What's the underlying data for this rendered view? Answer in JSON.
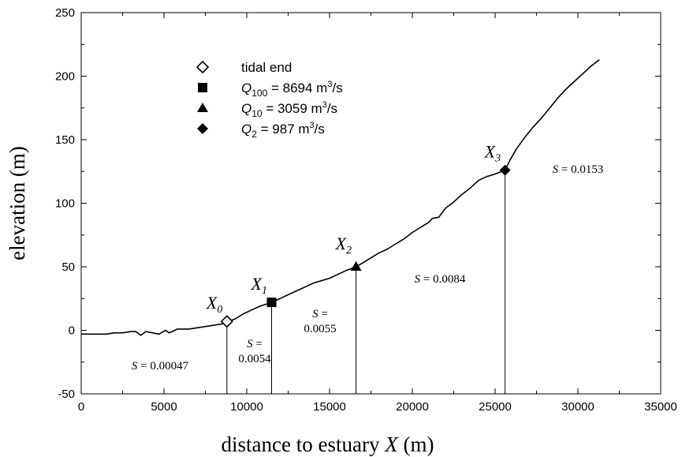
{
  "chart_data": {
    "type": "line",
    "xlabel": "distance to estuary",
    "xlabel_var": "X",
    "xlabel_unit": "(m)",
    "ylabel": "elevation (m)",
    "xlim": [
      0,
      35000
    ],
    "ylim": [
      -50,
      250
    ],
    "x_ticks": [
      0,
      5000,
      10000,
      15000,
      20000,
      25000,
      30000,
      35000
    ],
    "y_ticks": [
      -50,
      0,
      50,
      100,
      150,
      200,
      250
    ],
    "grid": false,
    "legend_position": "top-left",
    "series": [
      {
        "x": [
          0,
          500,
          1000,
          1500,
          2000,
          2500,
          3000,
          3300,
          3600,
          3900,
          4300,
          4700,
          5100,
          5300,
          5500,
          5800,
          6100,
          6500,
          7000,
          7500,
          8000,
          8500,
          8900,
          9300,
          9800,
          10300,
          10800,
          11500,
          12000,
          12500,
          13000,
          13500,
          14000,
          14500,
          15000,
          15500,
          16000,
          16600,
          17000,
          17500,
          18000,
          18500,
          19000,
          19500,
          20000,
          20500,
          21000,
          21200,
          21600,
          22000,
          22500,
          23000,
          23500,
          24000,
          24500,
          25000,
          25600,
          25900,
          26300,
          26800,
          27300,
          27800,
          28300,
          28800,
          29300,
          29800,
          30300,
          30800,
          31300
        ],
        "y": [
          -3,
          -3,
          -3,
          -3,
          -2,
          -2,
          -1,
          -1,
          -4,
          -1,
          -2,
          -3,
          0,
          -2,
          -1,
          1,
          1,
          1,
          2,
          3,
          4,
          5,
          7,
          9,
          13,
          16,
          19,
          22,
          25,
          28,
          31,
          34,
          37,
          39,
          41,
          44,
          47,
          50,
          53,
          57,
          61,
          64,
          68,
          72,
          77,
          81,
          85,
          88,
          89,
          96,
          101,
          107,
          112,
          118,
          121,
          123,
          126,
          134,
          143,
          152,
          160,
          167,
          175,
          183,
          190,
          196,
          202,
          208,
          213
        ]
      }
    ],
    "legend": [
      {
        "symbol": "diamond-open",
        "label": "tidal end"
      },
      {
        "symbol": "square",
        "q": "Q",
        "sub": "100",
        "label": " = 8694 m",
        "sup": "3",
        "tail": "/s"
      },
      {
        "symbol": "triangle",
        "q": "Q",
        "sub": "10",
        "label": " = 3059 m",
        "sup": "3",
        "tail": "/s"
      },
      {
        "symbol": "diamond",
        "q": "Q",
        "sub": "2",
        "label": " = 987 m",
        "sup": "3",
        "tail": "/s"
      }
    ],
    "points": [
      {
        "name": "X",
        "sub": "0",
        "x": 8800,
        "y": 7,
        "symbol": "diamond-open"
      },
      {
        "name": "X",
        "sub": "1",
        "x": 11500,
        "y": 22,
        "symbol": "square"
      },
      {
        "name": "X",
        "sub": "2",
        "x": 16600,
        "y": 50,
        "symbol": "triangle"
      },
      {
        "name": "X",
        "sub": "3",
        "x": 25600,
        "y": 126,
        "symbol": "diamond"
      }
    ],
    "vlines": [
      8800,
      11500,
      16600,
      25600
    ],
    "slopes": [
      {
        "lines": [
          "= 0.00047"
        ],
        "inline": true
      },
      {
        "lines": [
          "=",
          "0.0054"
        ],
        "inline": false
      },
      {
        "lines": [
          "=",
          "0.0055"
        ],
        "inline": false
      },
      {
        "lines": [
          "= 0.0084"
        ],
        "inline": true
      },
      {
        "lines": [
          "= 0.0153"
        ],
        "inline": true
      }
    ],
    "slope_symbol": "S",
    "colors": {
      "line": "#000000",
      "axis": "#000000",
      "marker": "#000000"
    }
  }
}
